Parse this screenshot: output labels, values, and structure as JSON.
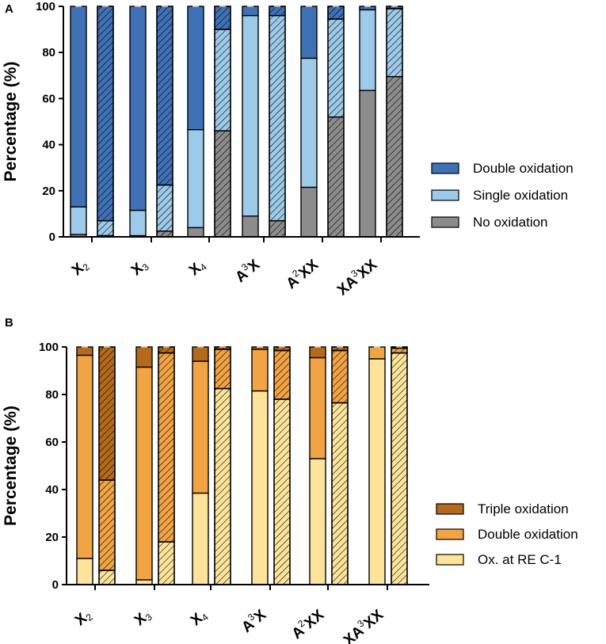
{
  "chart_data": [
    {
      "panel": "A",
      "type": "bar",
      "stacked": true,
      "ylabel": "Percentage (%)",
      "ylim": [
        0,
        100
      ],
      "yticks": [
        "0",
        "20",
        "40",
        "60",
        "80",
        "100"
      ],
      "categories": [
        {
          "base": "X",
          "sup": "",
          "sub": "2"
        },
        {
          "base": "X",
          "sup": "",
          "sub": "3"
        },
        {
          "base": "X",
          "sup": "",
          "sub": "4"
        },
        {
          "base": "A",
          "sup": "3",
          "sub": "",
          "rest": "X"
        },
        {
          "base": "A",
          "sup": "2",
          "sub": "",
          "rest": "XX"
        },
        {
          "base": "XA",
          "sup": "3",
          "sub": "",
          "rest": "XX"
        }
      ],
      "bars_per_category": [
        "solid",
        "hatched"
      ],
      "series": [
        {
          "name": "No oxidation",
          "color": "#8c8c8c",
          "solid": [
            1,
            0.5,
            4,
            9,
            21.5,
            63.5
          ],
          "hatched": [
            0.5,
            2.5,
            46,
            7,
            52,
            69.5
          ]
        },
        {
          "name": "Single oxidation",
          "color": "#9ccae8",
          "solid": [
            12,
            11,
            42.5,
            87,
            56,
            35
          ],
          "hatched": [
            6.5,
            20,
            44,
            89,
            42.5,
            29.5
          ]
        },
        {
          "name": "Double oxidation",
          "color": "#3f71b7",
          "solid": [
            87,
            88.5,
            53.5,
            4,
            22.5,
            1.5
          ],
          "hatched": [
            93,
            77.5,
            10,
            4,
            5.5,
            1
          ]
        }
      ],
      "legend": [
        "Double oxidation",
        "Single oxidation",
        "No oxidation"
      ],
      "legend_position": "right"
    },
    {
      "panel": "B",
      "type": "bar",
      "stacked": true,
      "ylabel": "Percentage (%)",
      "ylim": [
        0,
        100
      ],
      "yticks": [
        "0",
        "20",
        "40",
        "60",
        "80",
        "100"
      ],
      "categories": [
        {
          "base": "X",
          "sup": "",
          "sub": "2"
        },
        {
          "base": "X",
          "sup": "",
          "sub": "3"
        },
        {
          "base": "X",
          "sup": "",
          "sub": "4"
        },
        {
          "base": "A",
          "sup": "3",
          "sub": "",
          "rest": "X"
        },
        {
          "base": "A",
          "sup": "2",
          "sub": "",
          "rest": "XX"
        },
        {
          "base": "XA",
          "sup": "3",
          "sub": "",
          "rest": "XX"
        }
      ],
      "bars_per_category": [
        "solid",
        "hatched"
      ],
      "series": [
        {
          "name": "Ox. at RE C-1",
          "color": "#fde49a",
          "solid": [
            11,
            2,
            38.5,
            81.5,
            53,
            95
          ],
          "hatched": [
            6,
            18,
            82.5,
            78,
            76.5,
            97.5
          ]
        },
        {
          "name": "Double oxidation",
          "color": "#f2a444",
          "solid": [
            85.5,
            89.5,
            55.5,
            17.5,
            42.5,
            5
          ],
          "hatched": [
            38,
            79.5,
            16.5,
            20.5,
            22,
            2
          ]
        },
        {
          "name": "Triple oxidation",
          "color": "#b46a1b",
          "solid": [
            3.5,
            8.5,
            6,
            1,
            4.5,
            0
          ],
          "hatched": [
            56,
            2.5,
            1,
            1.5,
            1.5,
            0.5
          ]
        }
      ],
      "legend": [
        "Triple oxidation",
        "Double oxidation",
        "Ox. at RE C-1"
      ],
      "legend_position": "right"
    }
  ]
}
